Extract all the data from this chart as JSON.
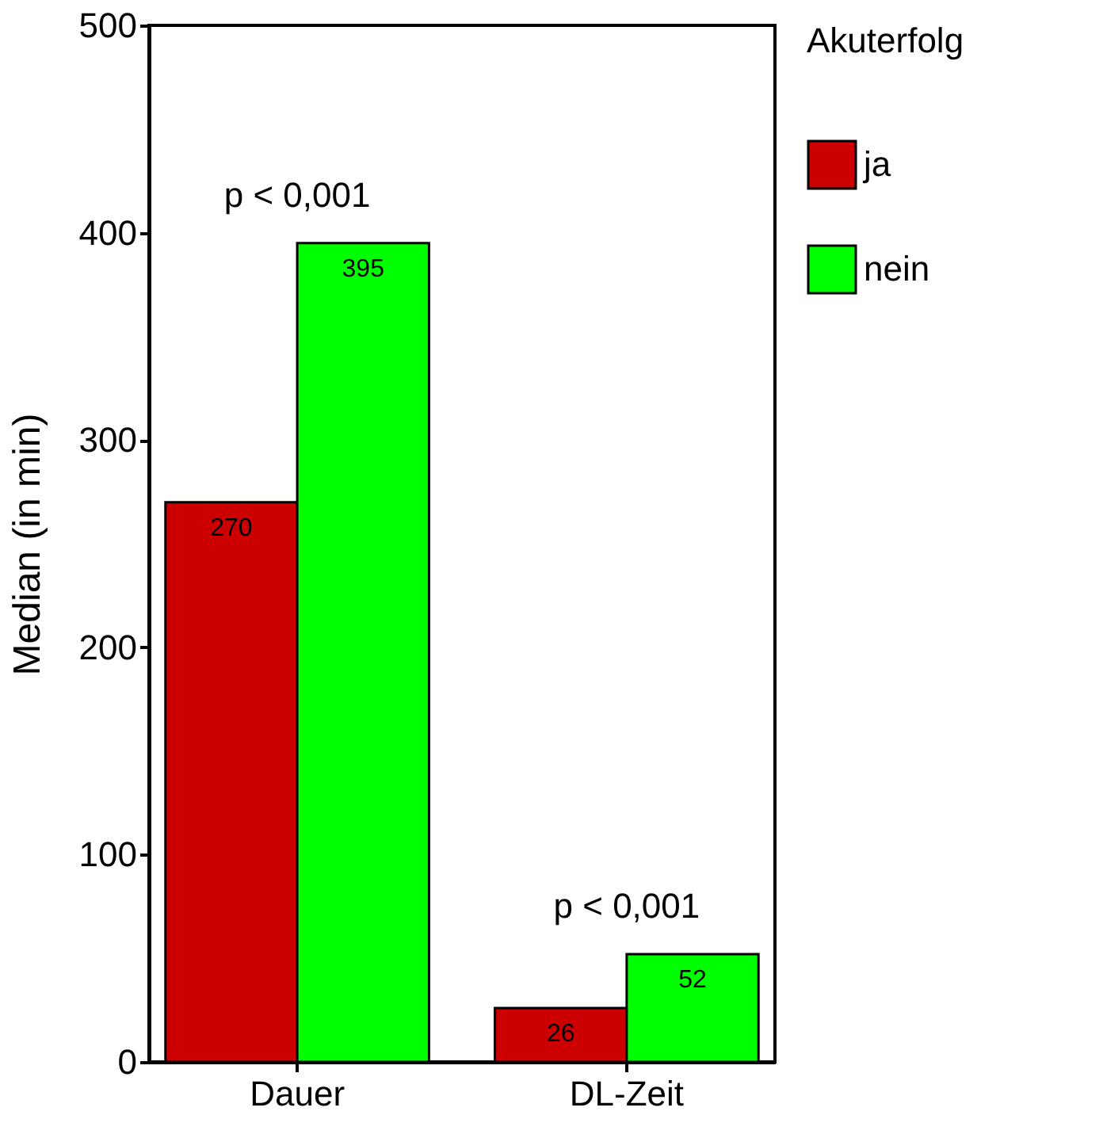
{
  "chart_data": {
    "type": "bar",
    "ylabel": "Median (in min)",
    "legend_title": "Akuterfolg",
    "categories": [
      "Dauer",
      "DL-Zeit"
    ],
    "series": [
      {
        "name": "ja",
        "color": "#cc0000",
        "values": [
          270,
          26
        ]
      },
      {
        "name": "nein",
        "color": "#00ff00",
        "values": [
          395,
          52
        ]
      }
    ],
    "ylim": [
      0,
      500
    ],
    "yticks": [
      0,
      100,
      200,
      300,
      400,
      500
    ],
    "data_labels": true,
    "legend": "right",
    "annotations": [
      "p < 0,001",
      "p < 0,001"
    ]
  }
}
